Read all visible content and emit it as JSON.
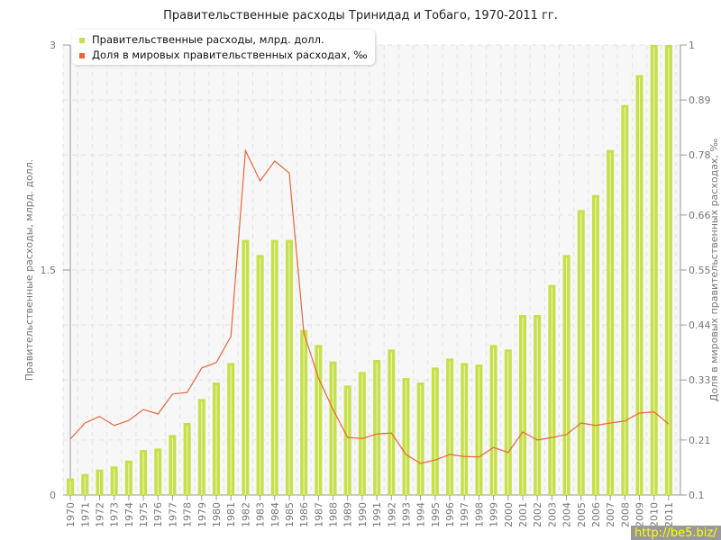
{
  "chart_data": {
    "type": "bar+line",
    "title": "Правительственные расходы Тринидад и Тобаго, 1970-2011 гг.",
    "ylabel": "Правительственные расходы, млрд. долл.",
    "y2label": "Доля в мировых правительственных расходах, ‰",
    "ylim": [
      0,
      3
    ],
    "yticks": [
      "0",
      "1.5",
      "3"
    ],
    "y2lim": [
      0.1,
      1
    ],
    "y2ticks": [
      "0.1",
      "0.21",
      "0.33",
      "0.44",
      "0.55",
      "0.66",
      "0.78",
      "0.89",
      "1"
    ],
    "grid": true,
    "legend": "top-left",
    "categories": [
      "1970",
      "1971",
      "1972",
      "1973",
      "1974",
      "1975",
      "1976",
      "1977",
      "1978",
      "1979",
      "1980",
      "1981",
      "1982",
      "1983",
      "1984",
      "1985",
      "1986",
      "1987",
      "1988",
      "1989",
      "1990",
      "1991",
      "1992",
      "1993",
      "1994",
      "1995",
      "1996",
      "1997",
      "1998",
      "1999",
      "2000",
      "2001",
      "2002",
      "2003",
      "2004",
      "2005",
      "2006",
      "2007",
      "2008",
      "2009",
      "2010",
      "2011"
    ],
    "series": [
      {
        "name": "Правительственные расходы, млрд. долл.",
        "type": "bar",
        "axis": "left",
        "color": "#c6e04a",
        "values": [
          0.11,
          0.14,
          0.17,
          0.19,
          0.23,
          0.3,
          0.31,
          0.4,
          0.48,
          0.64,
          0.75,
          0.88,
          1.7,
          1.6,
          1.7,
          1.7,
          1.1,
          1.0,
          0.89,
          0.73,
          0.82,
          0.9,
          0.97,
          0.78,
          0.75,
          0.85,
          0.91,
          0.88,
          0.87,
          1.0,
          0.97,
          1.2,
          1.2,
          1.4,
          1.6,
          1.9,
          2.0,
          2.3,
          2.6,
          2.8,
          3.0,
          3.0
        ]
      },
      {
        "name": "Доля в мировых правительственных расходах, ‰",
        "type": "line",
        "axis": "right",
        "color": "#e8663a",
        "values": [
          0.212,
          0.244,
          0.257,
          0.239,
          0.249,
          0.271,
          0.262,
          0.302,
          0.305,
          0.354,
          0.365,
          0.417,
          0.789,
          0.728,
          0.768,
          0.744,
          0.424,
          0.334,
          0.271,
          0.215,
          0.213,
          0.222,
          0.224,
          0.181,
          0.163,
          0.17,
          0.181,
          0.177,
          0.176,
          0.195,
          0.185,
          0.226,
          0.21,
          0.215,
          0.221,
          0.244,
          0.239,
          0.244,
          0.248,
          0.264,
          0.266,
          0.242
        ]
      }
    ]
  },
  "watermark": "http://be5.biz/"
}
